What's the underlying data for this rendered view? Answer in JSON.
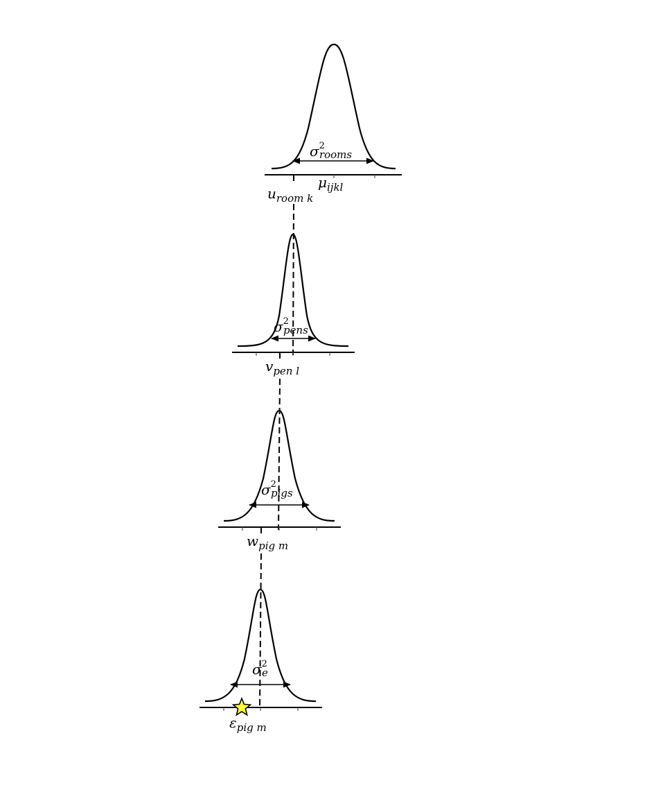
{
  "levels": [
    {
      "variance": {
        "base": "σ",
        "sup": "2",
        "sub": "rooms"
      },
      "effect": {
        "base": "u",
        "sub": "room k"
      }
    },
    {
      "variance": {
        "base": "σ",
        "sup": "2",
        "sub": "pens"
      },
      "effect": {
        "base": "v",
        "sub": "pen l"
      }
    },
    {
      "variance": {
        "base": "σ",
        "sup": "2",
        "sub": "pigs"
      },
      "effect": {
        "base": "w",
        "sub": "pig m"
      }
    },
    {
      "variance": {
        "base": "σ",
        "sup": "2",
        "sub": "e"
      },
      "effect": {
        "base": "ε",
        "sub": "pig m"
      }
    }
  ],
  "mean": {
    "base": "μ",
    "sub": "ijkl"
  },
  "marker": {
    "shape": "star",
    "color": "#ffff33"
  }
}
